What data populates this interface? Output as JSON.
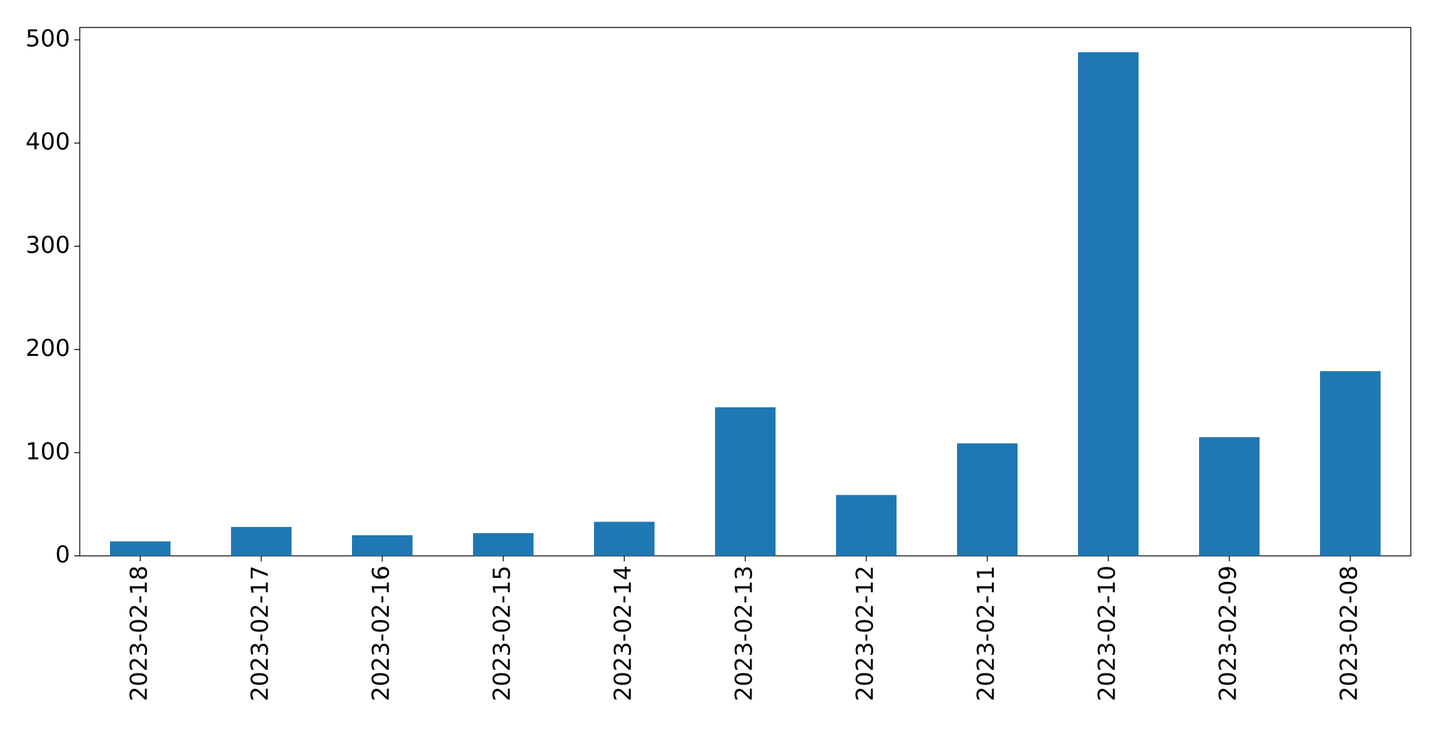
{
  "chart_data": {
    "type": "bar",
    "categories": [
      "2023-02-18",
      "2023-02-17",
      "2023-02-16",
      "2023-02-15",
      "2023-02-14",
      "2023-02-13",
      "2023-02-12",
      "2023-02-11",
      "2023-02-10",
      "2023-02-09",
      "2023-02-08"
    ],
    "values": [
      14,
      28,
      20,
      22,
      33,
      144,
      59,
      109,
      488,
      115,
      179
    ],
    "color": "#1f77b4",
    "ylim": [
      0,
      512
    ],
    "yticks": [
      0,
      100,
      200,
      300,
      400,
      500
    ],
    "grid": false
  }
}
